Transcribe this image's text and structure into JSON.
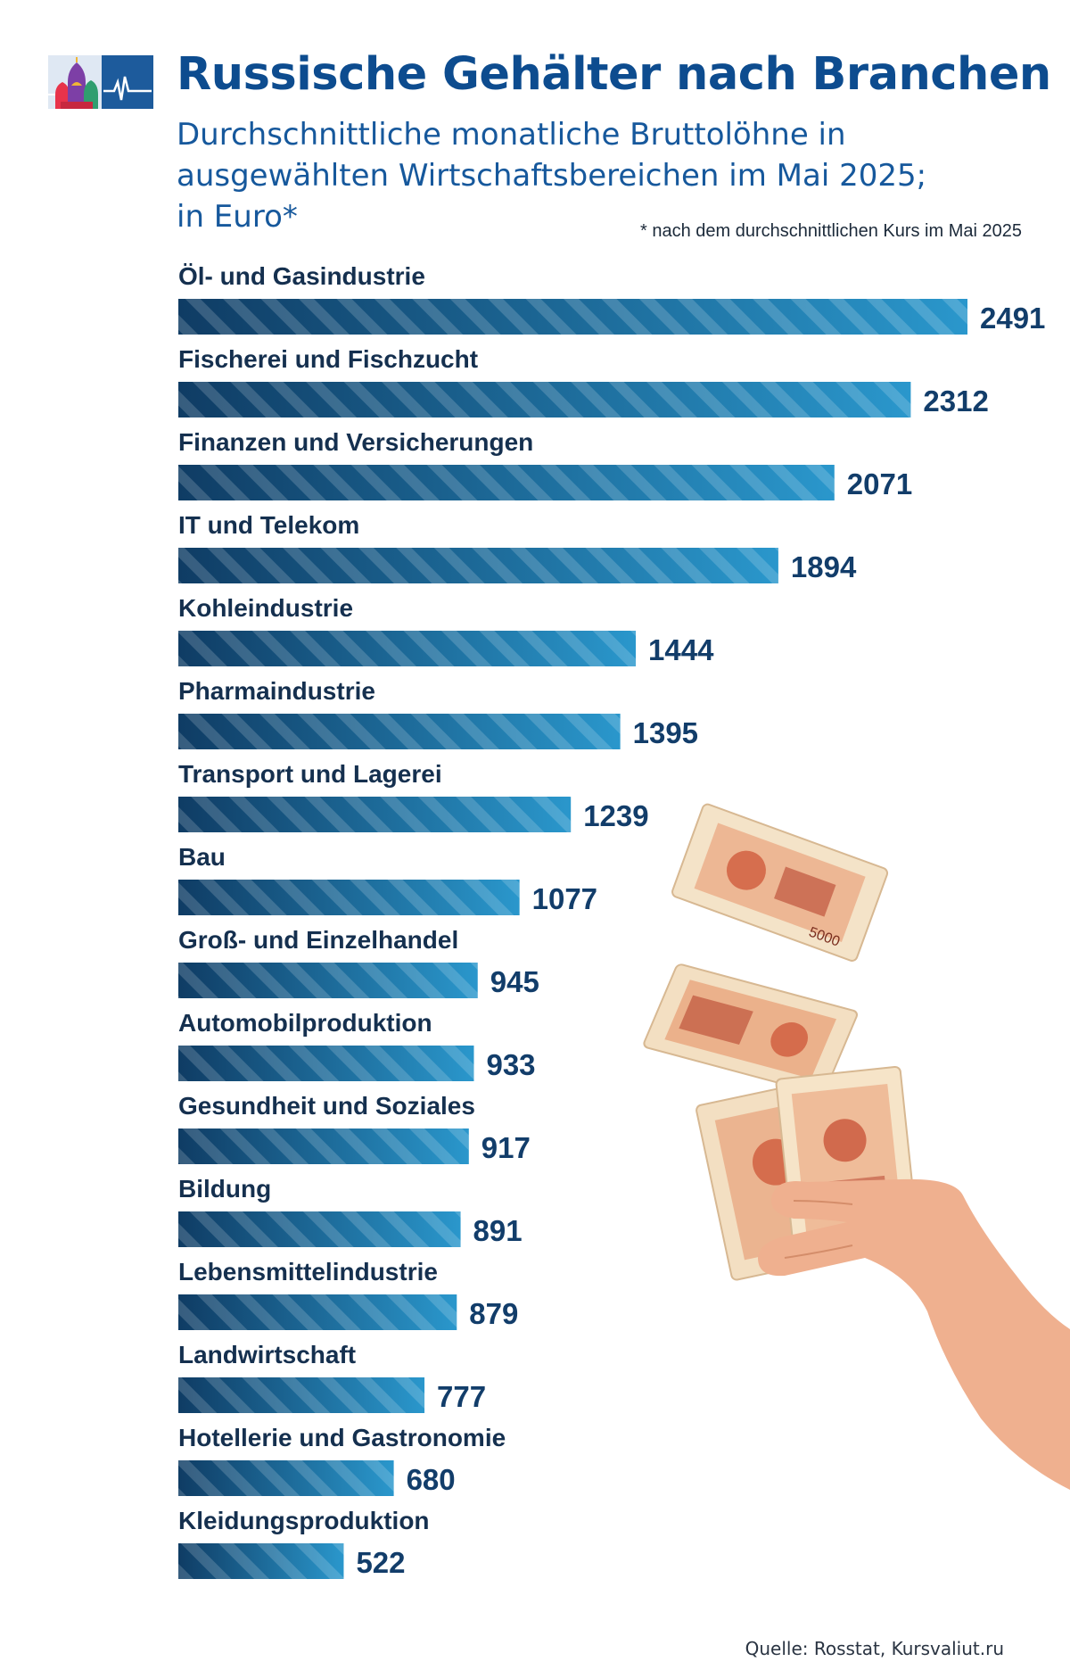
{
  "header": {
    "title": "Russische Gehälter nach Branchen",
    "subtitle_lines": [
      "Durchschnittliche monatliche Bruttolöhne in",
      "ausgewählten Wirtschaftsbereichen im Mai 2025;",
      "in Euro*"
    ],
    "footnote": "* nach dem durchschnittlichen Kurs im Mai 2025"
  },
  "chart_data": {
    "type": "bar",
    "orientation": "horizontal",
    "title": "Russische Gehälter nach Branchen",
    "subtitle": "Durchschnittliche monatliche Bruttolöhne in ausgewählten Wirtschaftsbereichen im Mai 2025; in Euro*",
    "categories": [
      "Öl- und Gasindustrie",
      "Fischerei und Fischzucht",
      "Finanzen und Versicherungen",
      "IT und Telekom",
      "Kohleindustrie",
      "Pharmaindustrie",
      "Transport und Lagerei",
      "Bau",
      "Groß- und Einzelhandel",
      "Automobilproduktion",
      "Gesundheit und Soziales",
      "Bildung",
      "Lebensmittelindustrie",
      "Landwirtschaft",
      "Hotellerie und Gastronomie",
      "Kleidungsproduktion"
    ],
    "values": [
      2491,
      2312,
      2071,
      1894,
      1444,
      1395,
      1239,
      1077,
      945,
      933,
      917,
      891,
      879,
      777,
      680,
      522
    ],
    "unit": "Euro",
    "xlim": [
      0,
      2491
    ],
    "xlabel": "",
    "ylabel": "",
    "grid": false,
    "legend": "none"
  },
  "colors": {
    "title": "#0d4c8f",
    "bar_dark": "#0f3c64",
    "bar_light": "#2a97cc",
    "label": "#15304f"
  },
  "illustration": {
    "description_icon": "ruble-banknotes-hand-icon",
    "banknote_text": "5000"
  },
  "source": "Quelle: Rosstat, Kursvaliut.ru"
}
